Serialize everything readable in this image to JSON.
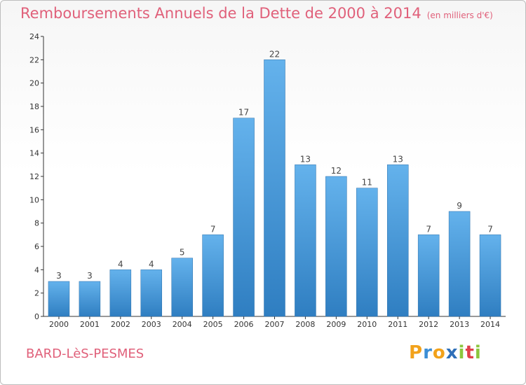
{
  "title": "Remboursements Annuels de la Dette de 2000 à 2014",
  "unit": "(en milliers d'€)",
  "commune": "BARD-LèS-PESMES",
  "logo": {
    "letters": [
      "P",
      "r",
      "o",
      "x",
      "i",
      "t",
      "i"
    ]
  },
  "colors": {
    "bar_top": "#64b2ec",
    "bar_bottom": "#2f7ec1",
    "title": "#e0607a"
  },
  "chart_data": {
    "type": "bar",
    "categories": [
      "2000",
      "2001",
      "2002",
      "2003",
      "2004",
      "2005",
      "2006",
      "2007",
      "2008",
      "2009",
      "2010",
      "2011",
      "2012",
      "2013",
      "2014"
    ],
    "values": [
      3,
      3,
      4,
      4,
      5,
      7,
      17,
      22,
      13,
      12,
      11,
      13,
      7,
      9,
      7
    ],
    "ylim": [
      0,
      24
    ],
    "yticks": [
      0,
      2,
      4,
      6,
      8,
      10,
      12,
      14,
      16,
      18,
      20,
      22,
      24
    ],
    "title": "Remboursements Annuels de la Dette de 2000 à 2014",
    "xlabel": "",
    "ylabel": "",
    "grid": false
  }
}
